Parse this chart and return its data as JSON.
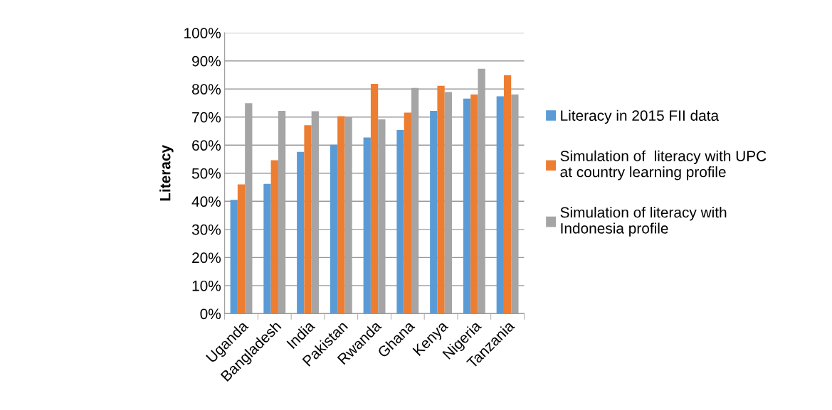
{
  "chart_data": {
    "type": "bar",
    "ylabel": "Literacy",
    "categories": [
      "Uganda",
      "Bangladesh",
      "India",
      "Pakistan",
      "Rwanda",
      "Ghana",
      "Kenya",
      "Nigeria",
      "Tanzania"
    ],
    "series": [
      {
        "name": "Literacy in 2015 FII data",
        "color": "#5b9bd5",
        "values": [
          40.5,
          46.2,
          57.6,
          60.1,
          62.7,
          65.4,
          72.2,
          76.6,
          77.4
        ]
      },
      {
        "name": "Simulation of  literacy with UPC at country learning profile",
        "color": "#ed7d31",
        "values": [
          46.0,
          54.6,
          67.1,
          70.3,
          81.8,
          71.6,
          81.1,
          78.0,
          84.9
        ]
      },
      {
        "name": "Simulation of literacy with Indonesia profile",
        "color": "#a5a5a5",
        "values": [
          74.9,
          72.2,
          72.1,
          70.0,
          69.2,
          80.4,
          78.9,
          87.2,
          78.0
        ]
      }
    ],
    "ylim": [
      0,
      100
    ],
    "yticks": [
      {
        "value": 0,
        "label": "0%"
      },
      {
        "value": 10,
        "label": "10%"
      },
      {
        "value": 20,
        "label": "20%"
      },
      {
        "value": 30,
        "label": "30%"
      },
      {
        "value": 40,
        "label": "40%"
      },
      {
        "value": 50,
        "label": "50%"
      },
      {
        "value": 60,
        "label": "60%"
      },
      {
        "value": 70,
        "label": "70%"
      },
      {
        "value": 80,
        "label": "80%"
      },
      {
        "value": 90,
        "label": "90%"
      },
      {
        "value": 100,
        "label": "100%"
      }
    ],
    "grid": "y",
    "legend": "right"
  }
}
